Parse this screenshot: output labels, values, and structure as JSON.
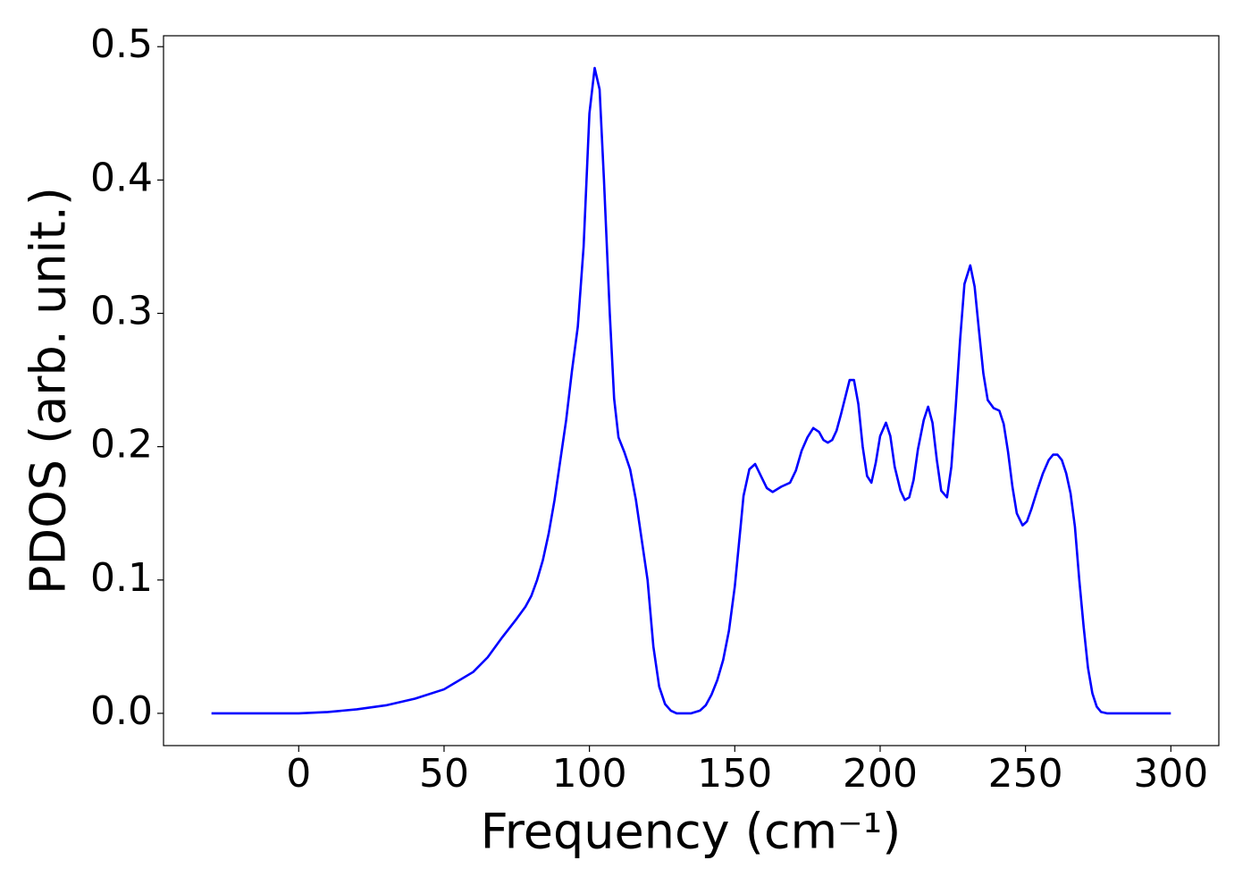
{
  "chart_data": {
    "type": "line",
    "xlabel": "Frequency (cm⁻¹)",
    "ylabel": "PDOS (arb. unit.)",
    "x": [
      -30,
      0,
      10,
      20,
      30,
      40,
      50,
      60,
      65,
      70,
      75,
      78,
      80,
      82,
      84,
      86,
      88,
      90,
      92,
      94,
      96,
      98,
      99,
      100,
      101.8,
      103.5,
      105,
      107,
      108.5,
      110,
      112,
      114,
      116,
      118,
      120,
      122,
      124,
      126,
      128,
      130,
      135,
      138,
      140,
      142,
      144,
      146,
      148,
      150,
      152,
      153,
      155,
      157,
      159,
      161,
      163,
      166,
      169,
      171,
      173,
      175,
      177,
      179,
      180.5,
      182,
      183.5,
      185,
      186.5,
      188,
      189.5,
      191,
      192.5,
      194,
      195.5,
      197,
      198.5,
      200,
      202,
      203.5,
      205,
      207,
      208.5,
      210,
      211.5,
      213,
      215,
      216.5,
      218,
      219.5,
      221,
      223,
      224.5,
      226,
      227.5,
      229,
      231,
      232.5,
      234,
      235.5,
      237,
      239,
      241,
      242.5,
      244,
      245.5,
      247,
      249,
      250.5,
      252,
      254,
      256,
      258,
      259.5,
      261,
      262.5,
      264,
      265.5,
      267,
      268.5,
      270,
      271.5,
      273,
      274.5,
      276,
      278,
      300
    ],
    "series": [
      {
        "name": "PDOS",
        "color": "#0000ff",
        "values": [
          0,
          0,
          0.001,
          0.003,
          0.006,
          0.011,
          0.018,
          0.031,
          0.042,
          0.057,
          0.071,
          0.08,
          0.088,
          0.1,
          0.115,
          0.135,
          0.16,
          0.19,
          0.22,
          0.257,
          0.29,
          0.35,
          0.4,
          0.45,
          0.484,
          0.468,
          0.4,
          0.3,
          0.236,
          0.207,
          0.196,
          0.183,
          0.16,
          0.13,
          0.1,
          0.05,
          0.02,
          0.007,
          0.002,
          0,
          0,
          0.002,
          0.006,
          0.014,
          0.025,
          0.04,
          0.062,
          0.095,
          0.14,
          0.163,
          0.183,
          0.187,
          0.178,
          0.169,
          0.166,
          0.17,
          0.173,
          0.182,
          0.197,
          0.207,
          0.214,
          0.211,
          0.205,
          0.203,
          0.205,
          0.212,
          0.224,
          0.237,
          0.25,
          0.25,
          0.232,
          0.2,
          0.178,
          0.173,
          0.188,
          0.208,
          0.218,
          0.208,
          0.185,
          0.167,
          0.16,
          0.162,
          0.175,
          0.198,
          0.22,
          0.23,
          0.218,
          0.19,
          0.167,
          0.162,
          0.185,
          0.23,
          0.28,
          0.322,
          0.336,
          0.32,
          0.287,
          0.255,
          0.235,
          0.229,
          0.227,
          0.217,
          0.196,
          0.17,
          0.15,
          0.141,
          0.144,
          0.153,
          0.167,
          0.18,
          0.19,
          0.194,
          0.194,
          0.19,
          0.18,
          0.165,
          0.14,
          0.1,
          0.065,
          0.034,
          0.015,
          0.005,
          0.001,
          0,
          0
        ]
      }
    ],
    "xlim": [
      -46.5,
      316.5
    ],
    "xticks": [
      0,
      50,
      100,
      150,
      200,
      250,
      300
    ],
    "ylim": [
      -0.0242,
      0.5082
    ],
    "yticks": [
      {
        "value": 0,
        "label": "0.0"
      },
      0.1,
      0.2,
      0.3,
      0.4,
      0.5
    ],
    "grid": false
  }
}
